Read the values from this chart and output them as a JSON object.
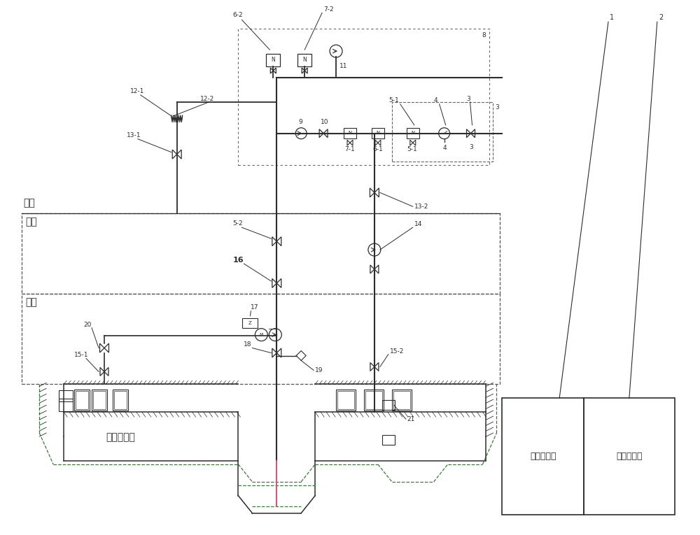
{
  "bg_color": "#ffffff",
  "lc": "#2c2c2c",
  "dc": "#555555",
  "green_dc": "#3a7a3a",
  "pink": "#cc6688",
  "fig_width": 10.0,
  "fig_height": 7.65,
  "labels": {
    "dimian": "地面",
    "jujing": "竖井",
    "zhuji": "主机",
    "changya": "常压开挖仓",
    "niji": "泥浆分离站",
    "yalv": "压滤机总成"
  }
}
